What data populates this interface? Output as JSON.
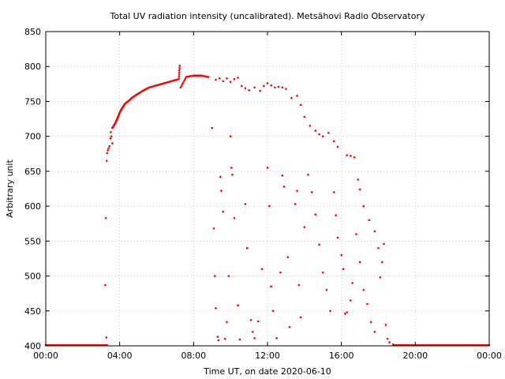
{
  "chart_data": {
    "type": "scatter",
    "title": "Total UV radiation intensity (uncalibrated). Metsähovi Radio Observatory",
    "xlabel": "Time UT, on date 2020-06-10",
    "ylabel": "Arbitrary unit",
    "xlim": [
      "00:00",
      "24:00"
    ],
    "ylim": [
      400,
      850
    ],
    "x_ticks": [
      "00:00",
      "04:00",
      "08:00",
      "12:00",
      "16:00",
      "20:00",
      "00:00"
    ],
    "y_ticks": [
      400,
      450,
      500,
      550,
      600,
      650,
      700,
      750,
      800,
      850
    ],
    "grid": true,
    "series_color": "#ff0000",
    "series": [
      {
        "x_unit": "hours UT",
        "points": [
          [
            3.3,
            665
          ],
          [
            3.32,
            676
          ],
          [
            3.36,
            680
          ],
          [
            3.4,
            683
          ],
          [
            3.45,
            686
          ],
          [
            3.5,
            697
          ],
          [
            3.52,
            706
          ],
          [
            3.55,
            700
          ],
          [
            3.6,
            690
          ],
          [
            3.25,
            583
          ],
          [
            3.22,
            487
          ],
          [
            3.28,
            412
          ],
          [
            3.6,
            712
          ],
          [
            3.7,
            716
          ],
          [
            3.8,
            721
          ],
          [
            3.9,
            727
          ],
          [
            4.0,
            734
          ],
          [
            4.1,
            739
          ],
          [
            4.2,
            743
          ],
          [
            4.3,
            747
          ],
          [
            4.5,
            751
          ],
          [
            4.7,
            756
          ],
          [
            5.0,
            761
          ],
          [
            5.3,
            766
          ],
          [
            5.6,
            770
          ],
          [
            6.0,
            773
          ],
          [
            6.4,
            776
          ],
          [
            6.8,
            779
          ],
          [
            7.2,
            782
          ],
          [
            7.6,
            785
          ],
          [
            8.0,
            787
          ],
          [
            8.4,
            787
          ],
          [
            8.8,
            785
          ],
          [
            7.25,
            801
          ],
          [
            7.3,
            770
          ],
          [
            9.2,
            781
          ],
          [
            9.4,
            783
          ],
          [
            9.6,
            779
          ],
          [
            9.8,
            783
          ],
          [
            10.0,
            778
          ],
          [
            10.2,
            782
          ],
          [
            10.4,
            784
          ],
          [
            10.6,
            772
          ],
          [
            10.8,
            769
          ],
          [
            11.0,
            766
          ],
          [
            11.3,
            770
          ],
          [
            11.6,
            765
          ],
          [
            11.8,
            772
          ],
          [
            12.0,
            776
          ],
          [
            12.2,
            773
          ],
          [
            12.4,
            770
          ],
          [
            12.6,
            771
          ],
          [
            12.8,
            770
          ],
          [
            13.0,
            768
          ],
          [
            13.3,
            755
          ],
          [
            13.6,
            758
          ],
          [
            13.8,
            745
          ],
          [
            14.0,
            728
          ],
          [
            14.3,
            715
          ],
          [
            14.6,
            708
          ],
          [
            14.8,
            703
          ],
          [
            15.0,
            700
          ],
          [
            15.3,
            705
          ],
          [
            15.6,
            693
          ],
          [
            15.8,
            685
          ],
          [
            16.3,
            673
          ],
          [
            16.5,
            672
          ],
          [
            16.7,
            670
          ],
          [
            16.9,
            638
          ],
          [
            17.0,
            624
          ],
          [
            17.2,
            600
          ],
          [
            17.5,
            580
          ],
          [
            17.8,
            564
          ],
          [
            18.0,
            540
          ],
          [
            18.2,
            520
          ],
          [
            18.4,
            430
          ],
          [
            18.5,
            410
          ],
          [
            18.6,
            405
          ],
          [
            18.8,
            402
          ],
          [
            9.0,
            712
          ],
          [
            9.1,
            568
          ],
          [
            9.15,
            500
          ],
          [
            9.2,
            454
          ],
          [
            9.3,
            413
          ],
          [
            9.35,
            408
          ],
          [
            9.45,
            642
          ],
          [
            9.5,
            622
          ],
          [
            9.6,
            592
          ],
          [
            9.7,
            410
          ],
          [
            9.8,
            434
          ],
          [
            9.9,
            500
          ],
          [
            10.0,
            700
          ],
          [
            10.05,
            655
          ],
          [
            10.1,
            645
          ],
          [
            10.2,
            583
          ],
          [
            10.4,
            458
          ],
          [
            10.5,
            409
          ],
          [
            10.8,
            603
          ],
          [
            10.9,
            540
          ],
          [
            11.1,
            437
          ],
          [
            11.2,
            420
          ],
          [
            11.3,
            411
          ],
          [
            11.5,
            435
          ],
          [
            11.7,
            510
          ],
          [
            12.0,
            655
          ],
          [
            12.1,
            600
          ],
          [
            12.2,
            485
          ],
          [
            12.3,
            450
          ],
          [
            12.5,
            411
          ],
          [
            12.7,
            505
          ],
          [
            12.8,
            644
          ],
          [
            12.9,
            628
          ],
          [
            13.1,
            527
          ],
          [
            13.2,
            427
          ],
          [
            13.5,
            603
          ],
          [
            13.6,
            622
          ],
          [
            13.7,
            487
          ],
          [
            13.8,
            441
          ],
          [
            14.0,
            570
          ],
          [
            14.2,
            645
          ],
          [
            14.4,
            620
          ],
          [
            14.6,
            588
          ],
          [
            14.8,
            545
          ],
          [
            15.0,
            505
          ],
          [
            15.2,
            480
          ],
          [
            15.4,
            450
          ],
          [
            15.6,
            620
          ],
          [
            15.7,
            587
          ],
          [
            15.8,
            555
          ],
          [
            16.0,
            530
          ],
          [
            16.1,
            510
          ],
          [
            16.2,
            446
          ],
          [
            16.3,
            448
          ],
          [
            16.5,
            465
          ],
          [
            16.6,
            490
          ],
          [
            16.8,
            560
          ],
          [
            17.0,
            520
          ],
          [
            17.2,
            480
          ],
          [
            17.4,
            460
          ],
          [
            17.6,
            434
          ],
          [
            17.8,
            420
          ],
          [
            18.1,
            498
          ],
          [
            18.3,
            546
          ]
        ]
      }
    ],
    "baseline_segments": [
      {
        "from": "00:00",
        "to": "03:20",
        "value": 401
      },
      {
        "from": "18:50",
        "to": "24:00",
        "value": 401
      }
    ]
  }
}
